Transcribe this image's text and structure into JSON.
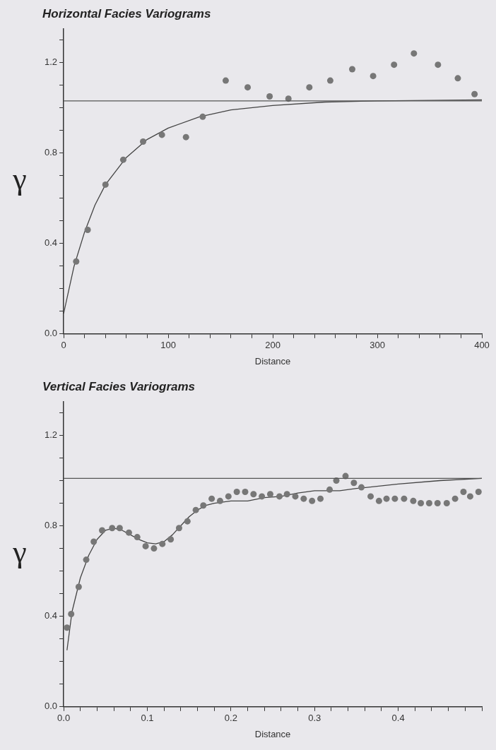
{
  "chart_data": [
    {
      "type": "scatter",
      "title": "Horizontal Facies Variograms",
      "xlabel": "Distance",
      "ylabel": "γ",
      "marker": "circle",
      "grid": false,
      "legend": false,
      "xlim": [
        0,
        400
      ],
      "ylim": [
        0,
        1.35
      ],
      "xticks": [
        0,
        {
          "value": 20,
          "label": null
        },
        {
          "value": 40,
          "label": null
        },
        {
          "value": 60,
          "label": null
        },
        {
          "value": 80,
          "label": null
        },
        100,
        {
          "value": 120,
          "label": null
        },
        {
          "value": 140,
          "label": null
        },
        {
          "value": 160,
          "label": null
        },
        {
          "value": 180,
          "label": null
        },
        200,
        {
          "value": 220,
          "label": null
        },
        {
          "value": 240,
          "label": null
        },
        {
          "value": 260,
          "label": null
        },
        {
          "value": 280,
          "label": null
        },
        300,
        {
          "value": 320,
          "label": null
        },
        {
          "value": 340,
          "label": null
        },
        {
          "value": 360,
          "label": null
        },
        {
          "value": 380,
          "label": null
        },
        400
      ],
      "yticks": [
        {
          "value": 0,
          "label": "0.0"
        },
        {
          "value": 0.1,
          "label": null
        },
        {
          "value": 0.2,
          "label": null
        },
        {
          "value": 0.3,
          "label": null
        },
        0.4,
        {
          "value": 0.5,
          "label": null
        },
        {
          "value": 0.6,
          "label": null
        },
        {
          "value": 0.7,
          "label": null
        },
        0.8,
        {
          "value": 0.9,
          "label": null
        },
        {
          "value": 1.0,
          "label": null
        },
        {
          "value": 1.1,
          "label": null
        },
        1.2,
        {
          "value": 1.3,
          "label": null
        }
      ],
      "ref_lines": [
        {
          "axis": "y",
          "value": 1.03,
          "color": "#555555"
        }
      ],
      "series": [
        {
          "color": "#777777",
          "x": [
            12,
            23,
            40,
            57,
            76,
            94,
            117,
            133,
            155,
            176,
            197,
            215,
            235,
            255,
            276,
            296,
            316,
            335,
            358,
            377,
            393
          ],
          "values": [
            0.32,
            0.46,
            0.66,
            0.77,
            0.85,
            0.88,
            0.87,
            0.96,
            1.12,
            1.09,
            1.05,
            1.04,
            1.09,
            1.12,
            1.17,
            1.14,
            1.19,
            1.24,
            1.19,
            1.13,
            1.06
          ]
        },
        {
          "type": "line",
          "marker": "none",
          "color": "#444444",
          "x": [
            0,
            10,
            20,
            30,
            40,
            60,
            80,
            100,
            130,
            160,
            200,
            250,
            300,
            400
          ],
          "values": [
            0.09,
            0.3,
            0.45,
            0.57,
            0.66,
            0.78,
            0.86,
            0.91,
            0.96,
            0.99,
            1.01,
            1.025,
            1.03,
            1.035
          ]
        }
      ]
    },
    {
      "type": "scatter",
      "title": "Vertical Facies Variograms",
      "xlabel": "Distance",
      "ylabel": "γ",
      "marker": "circle",
      "grid": false,
      "legend": false,
      "xlim": [
        0,
        0.5
      ],
      "ylim": [
        0,
        1.35
      ],
      "xticks": [
        {
          "value": 0,
          "label": "0.0"
        },
        {
          "value": 0.02,
          "label": null
        },
        {
          "value": 0.04,
          "label": null
        },
        {
          "value": 0.06,
          "label": null
        },
        {
          "value": 0.08,
          "label": null
        },
        0.1,
        {
          "value": 0.12,
          "label": null
        },
        {
          "value": 0.14,
          "label": null
        },
        {
          "value": 0.16,
          "label": null
        },
        {
          "value": 0.18,
          "label": null
        },
        0.2,
        {
          "value": 0.22,
          "label": null
        },
        {
          "value": 0.24,
          "label": null
        },
        {
          "value": 0.26,
          "label": null
        },
        {
          "value": 0.28,
          "label": null
        },
        0.3,
        {
          "value": 0.32,
          "label": null
        },
        {
          "value": 0.34,
          "label": null
        },
        {
          "value": 0.36,
          "label": null
        },
        {
          "value": 0.38,
          "label": null
        },
        0.4,
        {
          "value": 0.42,
          "label": null
        },
        {
          "value": 0.44,
          "label": null
        },
        {
          "value": 0.46,
          "label": null
        },
        {
          "value": 0.48,
          "label": null
        },
        {
          "value": 0.5,
          "label": null
        }
      ],
      "yticks": [
        {
          "value": 0,
          "label": "0.0"
        },
        {
          "value": 0.1,
          "label": null
        },
        {
          "value": 0.2,
          "label": null
        },
        {
          "value": 0.3,
          "label": null
        },
        0.4,
        {
          "value": 0.5,
          "label": null
        },
        {
          "value": 0.6,
          "label": null
        },
        {
          "value": 0.7,
          "label": null
        },
        0.8,
        {
          "value": 0.9,
          "label": null
        },
        {
          "value": 1.0,
          "label": null
        },
        {
          "value": 1.1,
          "label": null
        },
        1.2,
        {
          "value": 1.3,
          "label": null
        }
      ],
      "ref_lines": [
        {
          "axis": "y",
          "value": 1.01,
          "color": "#555555"
        }
      ],
      "series": [
        {
          "color": "#777777",
          "x": [
            0.004,
            0.009,
            0.018,
            0.027,
            0.036,
            0.046,
            0.058,
            0.067,
            0.078,
            0.088,
            0.098,
            0.108,
            0.118,
            0.128,
            0.138,
            0.148,
            0.158,
            0.167,
            0.177,
            0.187,
            0.197,
            0.207,
            0.217,
            0.227,
            0.237,
            0.247,
            0.258,
            0.267,
            0.277,
            0.287,
            0.297,
            0.307,
            0.318,
            0.326,
            0.337,
            0.347,
            0.356,
            0.367,
            0.377,
            0.386,
            0.396,
            0.407,
            0.418,
            0.427,
            0.437,
            0.447,
            0.458,
            0.468,
            0.478,
            0.486,
            0.496
          ],
          "values": [
            0.35,
            0.41,
            0.53,
            0.65,
            0.73,
            0.78,
            0.79,
            0.79,
            0.77,
            0.75,
            0.71,
            0.7,
            0.72,
            0.74,
            0.79,
            0.82,
            0.87,
            0.89,
            0.92,
            0.91,
            0.93,
            0.95,
            0.95,
            0.94,
            0.93,
            0.94,
            0.93,
            0.94,
            0.93,
            0.92,
            0.91,
            0.92,
            0.96,
            1.0,
            1.02,
            0.99,
            0.97,
            0.93,
            0.91,
            0.92,
            0.92,
            0.92,
            0.91,
            0.9,
            0.9,
            0.9,
            0.9,
            0.92,
            0.95,
            0.93,
            0.95
          ]
        },
        {
          "type": "line",
          "marker": "none",
          "color": "#444444",
          "x": [
            0.004,
            0.01,
            0.02,
            0.03,
            0.04,
            0.05,
            0.06,
            0.07,
            0.08,
            0.09,
            0.1,
            0.11,
            0.12,
            0.13,
            0.14,
            0.15,
            0.16,
            0.17,
            0.18,
            0.2,
            0.22,
            0.24,
            0.26,
            0.28,
            0.3,
            0.33,
            0.35,
            0.4,
            0.45,
            0.5
          ],
          "values": [
            0.25,
            0.42,
            0.57,
            0.67,
            0.74,
            0.78,
            0.79,
            0.78,
            0.76,
            0.74,
            0.725,
            0.72,
            0.73,
            0.76,
            0.8,
            0.84,
            0.87,
            0.89,
            0.9,
            0.91,
            0.91,
            0.925,
            0.93,
            0.945,
            0.955,
            0.955,
            0.965,
            0.985,
            1.0,
            1.01
          ]
        }
      ]
    }
  ]
}
